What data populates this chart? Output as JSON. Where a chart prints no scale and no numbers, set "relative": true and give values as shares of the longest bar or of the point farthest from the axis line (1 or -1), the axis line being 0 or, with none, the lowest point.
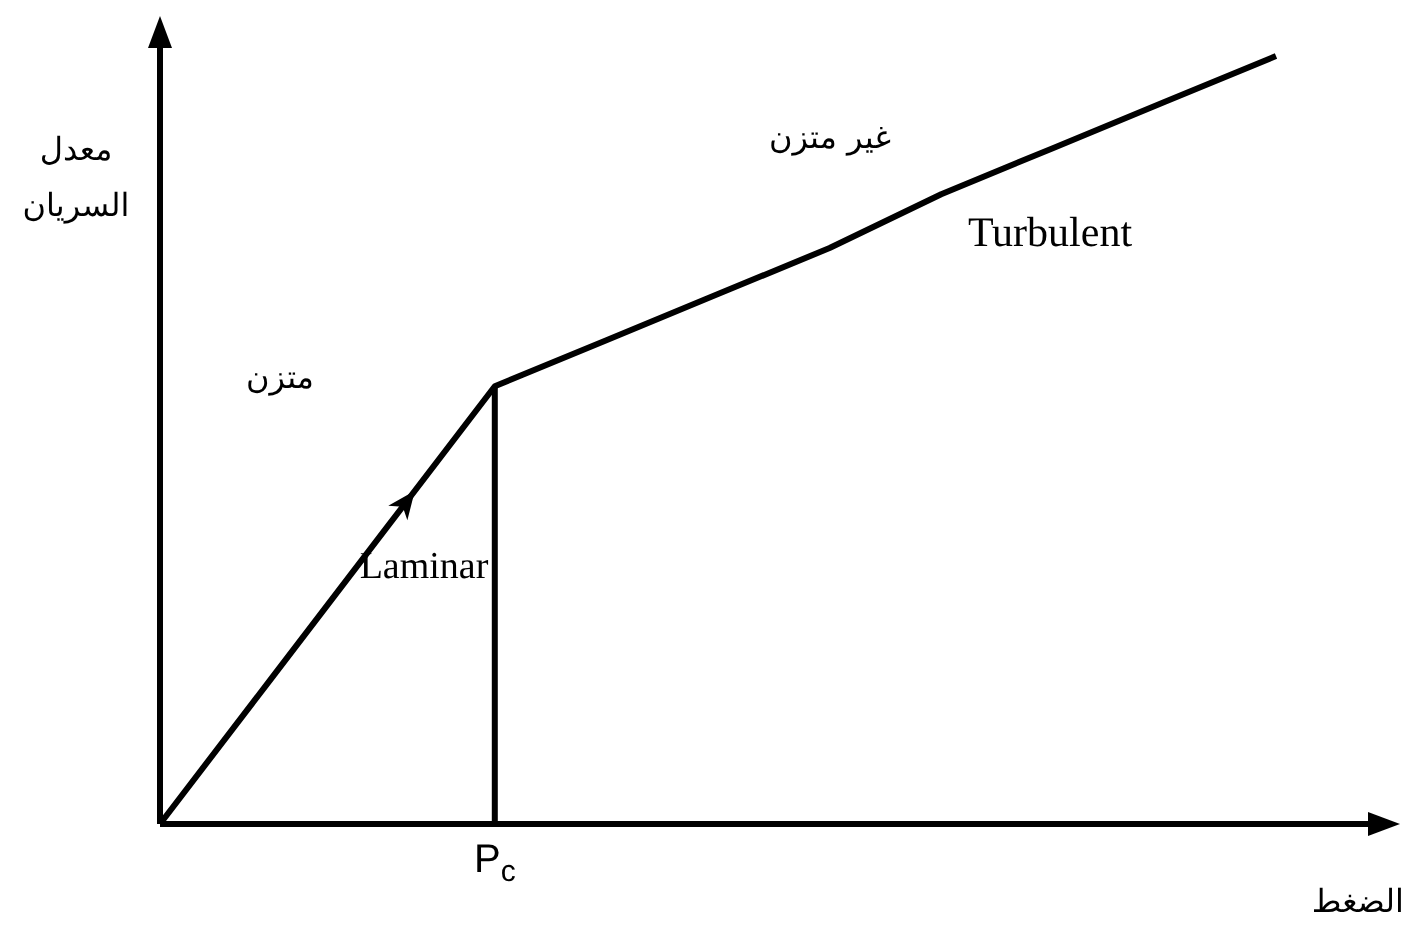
{
  "chart_data": {
    "type": "line",
    "relative": true,
    "xlabel": "الضغط",
    "ylabel": "معدل\nالسريان",
    "categories": [
      null,
      null,
      null,
      null,
      null,
      null,
      null,
      null,
      null,
      null,
      null
    ],
    "series": [
      {
        "color": "#000000",
        "values": [
          0,
          0.19,
          0.38,
          0.57,
          0.63,
          0.69,
          0.75,
          0.82,
          0.88,
          0.94,
          1
        ]
      }
    ],
    "annotations": [
      "غير متزن",
      "Turbulent",
      "متزن",
      "Laminar",
      {
        "text": "P$_{c}$",
        "y": 0.57
      }
    ],
    "marker": "none",
    "line_style": "solid"
  }
}
